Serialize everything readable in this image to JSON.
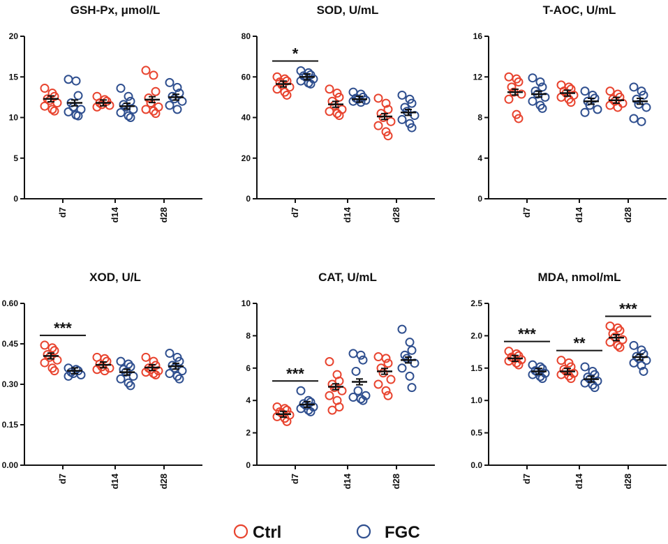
{
  "colors": {
    "ctrl": "#e8432e",
    "fgc": "#2f4f8f",
    "axis": "#111111"
  },
  "legend": [
    {
      "label": "Ctrl",
      "color": "#e8432e"
    },
    {
      "label": "FGC",
      "color": "#2f4f8f"
    }
  ],
  "chart_data": [
    {
      "type": "scatter",
      "title": "GSH-Px, μmol/L",
      "categories": [
        "d7",
        "d14",
        "d28"
      ],
      "ylim": [
        0,
        20
      ],
      "yticks": [
        "0",
        "5",
        "10",
        "15",
        "20"
      ],
      "series": [
        {
          "name": "Ctrl",
          "mean": [
            12.3,
            11.8,
            12.2
          ],
          "points": [
            [
              13.6,
              13.0,
              12.6,
              12.3,
              12.1,
              11.8,
              11.4,
              11.0,
              10.8
            ],
            [
              12.6,
              12.2,
              12.0,
              11.8,
              11.6,
              11.5,
              11.3
            ],
            [
              15.8,
              15.2,
              13.2,
              12.4,
              11.8,
              11.3,
              11.0,
              10.8,
              10.5
            ]
          ]
        },
        {
          "name": "FGC",
          "mean": [
            11.8,
            11.4,
            12.5
          ],
          "points": [
            [
              14.7,
              14.5,
              12.7,
              11.8,
              11.3,
              11.0,
              10.7,
              10.3,
              10.2
            ],
            [
              13.6,
              12.6,
              12.0,
              11.6,
              11.3,
              11.0,
              10.6,
              10.2,
              10.0
            ],
            [
              14.3,
              13.7,
              13.0,
              12.6,
              12.3,
              12.0,
              11.5,
              11.0
            ]
          ]
        }
      ],
      "significance": []
    },
    {
      "type": "scatter",
      "title": "SOD, U/mL",
      "categories": [
        "d7",
        "d14",
        "d28"
      ],
      "ylim": [
        0,
        80
      ],
      "yticks": [
        "0",
        "20",
        "40",
        "60",
        "80"
      ],
      "series": [
        {
          "name": "Ctrl",
          "mean": [
            56.5,
            46.5,
            40.5
          ],
          "points": [
            [
              60,
              59,
              58,
              57.5,
              56,
              55,
              54,
              52.5,
              51
            ],
            [
              54,
              52,
              50,
              48,
              46,
              44,
              43,
              42,
              41
            ],
            [
              49.5,
              47,
              44,
              42,
              40,
              38,
              36,
              33,
              31
            ]
          ]
        },
        {
          "name": "FGC",
          "mean": [
            60.0,
            49.0,
            42.5
          ],
          "points": [
            [
              63,
              62,
              61,
              60.5,
              60,
              59,
              58,
              57,
              56.5
            ],
            [
              52.5,
              51.5,
              50,
              49.5,
              49,
              48.5,
              48,
              47.5
            ],
            [
              51,
              49,
              47,
              45,
              43,
              41,
              39,
              37,
              35
            ]
          ]
        }
      ],
      "significance": [
        {
          "category": "d7",
          "label": "*"
        }
      ]
    },
    {
      "type": "scatter",
      "title": "T-AOC, U/mL",
      "categories": [
        "d7",
        "d14",
        "d28"
      ],
      "ylim": [
        0,
        16
      ],
      "yticks": [
        "0",
        "4",
        "8",
        "12",
        "16"
      ],
      "series": [
        {
          "name": "Ctrl",
          "mean": [
            10.5,
            10.4,
            9.7
          ],
          "points": [
            [
              12.0,
              11.8,
              11.5,
              11.0,
              10.5,
              10.3,
              9.8,
              8.3,
              7.9
            ],
            [
              11.2,
              11.0,
              10.8,
              10.6,
              10.4,
              10.2,
              10.0,
              9.8,
              9.5
            ],
            [
              10.6,
              10.3,
              10.0,
              9.8,
              9.6,
              9.4,
              9.2,
              9.0
            ]
          ]
        },
        {
          "name": "FGC",
          "mean": [
            10.3,
            9.6,
            9.6
          ],
          "points": [
            [
              11.9,
              11.5,
              11.0,
              10.6,
              10.3,
              10.0,
              9.6,
              9.2,
              8.9
            ],
            [
              10.6,
              10.2,
              9.9,
              9.6,
              9.2,
              8.8,
              8.5
            ],
            [
              11.0,
              10.6,
              10.2,
              9.8,
              9.3,
              9.0,
              7.9,
              7.6
            ]
          ]
        }
      ],
      "significance": []
    },
    {
      "type": "scatter",
      "title": "XOD, U/L",
      "categories": [
        "d7",
        "d14",
        "d28"
      ],
      "ylim": [
        0,
        0.6
      ],
      "yticks": [
        "0.00",
        "0.15",
        "0.30",
        "0.45",
        "0.60"
      ],
      "series": [
        {
          "name": "Ctrl",
          "mean": [
            0.405,
            0.372,
            0.362
          ],
          "points": [
            [
              0.445,
              0.435,
              0.425,
              0.41,
              0.4,
              0.39,
              0.38,
              0.36,
              0.35
            ],
            [
              0.4,
              0.395,
              0.385,
              0.375,
              0.365,
              0.36,
              0.355,
              0.35
            ],
            [
              0.4,
              0.385,
              0.37,
              0.36,
              0.355,
              0.35,
              0.345,
              0.34,
              0.335
            ]
          ]
        },
        {
          "name": "FGC",
          "mean": [
            0.35,
            0.345,
            0.367
          ],
          "points": [
            [
              0.36,
              0.355,
              0.35,
              0.345,
              0.34,
              0.335,
              0.33
            ],
            [
              0.385,
              0.375,
              0.365,
              0.355,
              0.345,
              0.33,
              0.32,
              0.305,
              0.295
            ],
            [
              0.415,
              0.4,
              0.385,
              0.37,
              0.36,
              0.35,
              0.34,
              0.33,
              0.32
            ]
          ]
        }
      ],
      "significance": [
        {
          "category": "d7",
          "label": "***"
        }
      ]
    },
    {
      "type": "scatter",
      "title": "CAT, U/mL",
      "categories": [
        "d7",
        "d14",
        "d28"
      ],
      "ylim": [
        0,
        10
      ],
      "yticks": [
        "0",
        "2",
        "4",
        "6",
        "8",
        "10"
      ],
      "series": [
        {
          "name": "Ctrl",
          "mean": [
            3.15,
            4.85,
            5.8
          ],
          "points": [
            [
              3.6,
              3.5,
              3.4,
              3.3,
              3.2,
              3.1,
              3.0,
              2.9,
              2.7
            ],
            [
              6.4,
              5.6,
              5.2,
              5.0,
              4.8,
              4.6,
              4.3,
              4.0,
              3.6,
              3.4
            ],
            [
              6.7,
              6.6,
              6.3,
              6.0,
              5.7,
              5.3,
              5.0,
              4.6,
              4.3
            ]
          ]
        },
        {
          "name": "FGC",
          "mean": [
            3.75,
            5.15,
            6.5
          ],
          "points": [
            [
              4.6,
              4.0,
              3.9,
              3.8,
              3.7,
              3.6,
              3.5,
              3.4,
              3.3
            ],
            [
              6.9,
              6.8,
              6.5,
              5.8,
              4.6,
              4.3,
              4.2,
              4.1,
              4.0
            ],
            [
              8.4,
              7.6,
              7.1,
              6.8,
              6.6,
              6.3,
              6.0,
              5.5,
              4.8
            ]
          ]
        }
      ],
      "significance": [
        {
          "category": "d7",
          "label": "***"
        }
      ]
    },
    {
      "type": "scatter",
      "title": "MDA, nmol/mL",
      "categories": [
        "d7",
        "d14",
        "d28"
      ],
      "ylim": [
        0,
        2.5
      ],
      "yticks": [
        "0.0",
        "0.5",
        "1.0",
        "1.5",
        "2.0",
        "2.5"
      ],
      "series": [
        {
          "name": "Ctrl",
          "mean": [
            1.65,
            1.45,
            1.97
          ],
          "points": [
            [
              1.76,
              1.72,
              1.69,
              1.67,
              1.65,
              1.63,
              1.61,
              1.58,
              1.55
            ],
            [
              1.62,
              1.58,
              1.52,
              1.48,
              1.45,
              1.42,
              1.4,
              1.38,
              1.34
            ],
            [
              2.15,
              2.12,
              2.08,
              2.03,
              1.98,
              1.94,
              1.9,
              1.85,
              1.82
            ]
          ]
        },
        {
          "name": "FGC",
          "mean": [
            1.45,
            1.33,
            1.67
          ],
          "points": [
            [
              1.55,
              1.52,
              1.49,
              1.46,
              1.44,
              1.42,
              1.4,
              1.37,
              1.34
            ],
            [
              1.52,
              1.45,
              1.4,
              1.36,
              1.33,
              1.3,
              1.27,
              1.24,
              1.2
            ],
            [
              1.85,
              1.78,
              1.72,
              1.68,
              1.65,
              1.62,
              1.58,
              1.54,
              1.45
            ]
          ]
        }
      ],
      "significance": [
        {
          "category": "d7",
          "label": "***"
        },
        {
          "category": "d14",
          "label": "**"
        },
        {
          "category": "d28",
          "label": "***"
        }
      ]
    }
  ]
}
